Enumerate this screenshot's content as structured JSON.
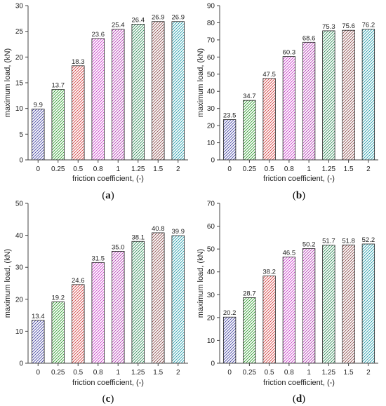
{
  "colors": {
    "bars": [
      "#3f3fa0",
      "#2a9a2a",
      "#d23a3a",
      "#c83ac8",
      "#b43ab4",
      "#2e8b57",
      "#8b4a4a",
      "#1e9aa8"
    ],
    "axis": "#444444"
  },
  "chart_data": [
    {
      "type": "bar",
      "panel": "a",
      "panel_label": "(a)",
      "categories": [
        "0",
        "0.25",
        "0.5",
        "0.8",
        "1",
        "1.25",
        "1.5",
        "2"
      ],
      "values": [
        9.9,
        13.7,
        18.3,
        23.6,
        25.4,
        26.4,
        26.9,
        26.9
      ],
      "value_labels": [
        "9.9",
        "13.7",
        "18.3",
        "23.6",
        "25.4",
        "26.4",
        "26.9",
        "26.9"
      ],
      "xlabel": "friction coefficient, (-)",
      "ylabel": "maximum load, (kN)",
      "ylim": [
        0,
        30
      ],
      "yticks": [
        0,
        5,
        10,
        15,
        20,
        25,
        30
      ],
      "grid": false
    },
    {
      "type": "bar",
      "panel": "b",
      "panel_label": "(b)",
      "categories": [
        "0",
        "0.25",
        "0.5",
        "0.8",
        "1",
        "1.25",
        "1.5",
        "2"
      ],
      "values": [
        23.5,
        34.7,
        47.5,
        60.3,
        68.6,
        75.3,
        75.6,
        76.2
      ],
      "value_labels": [
        "23.5",
        "34.7",
        "47.5",
        "60.3",
        "68.6",
        "75.3",
        "75.6",
        "76.2"
      ],
      "xlabel": "friction coefficient, (-)",
      "ylabel": "maximum load, (kN)",
      "ylim": [
        0,
        90
      ],
      "yticks": [
        0,
        10,
        20,
        30,
        40,
        50,
        60,
        70,
        80,
        90
      ],
      "grid": false
    },
    {
      "type": "bar",
      "panel": "c",
      "panel_label": "(c)",
      "categories": [
        "0",
        "0.25",
        "0.5",
        "0.8",
        "1",
        "1.25",
        "1.5",
        "2"
      ],
      "values": [
        13.4,
        19.2,
        24.6,
        31.5,
        35.0,
        38.1,
        40.8,
        39.9
      ],
      "value_labels": [
        "13.4",
        "19.2",
        "24.6",
        "31.5",
        "35.0",
        "38.1",
        "40.8",
        "39.9"
      ],
      "xlabel": "friction coefficient, (-)",
      "ylabel": "maximum load, (kN)",
      "ylim": [
        0,
        50
      ],
      "yticks": [
        0,
        10,
        20,
        30,
        40,
        50
      ],
      "grid": false
    },
    {
      "type": "bar",
      "panel": "d",
      "panel_label": "(d)",
      "categories": [
        "0",
        "0.25",
        "0.5",
        "0.8",
        "1",
        "1.25",
        "1.5",
        "2"
      ],
      "values": [
        20.2,
        28.7,
        38.2,
        46.5,
        50.2,
        51.7,
        51.8,
        52.2
      ],
      "value_labels": [
        "20.2",
        "28.7",
        "38.2",
        "46.5",
        "50.2",
        "51.7",
        "51.8",
        "52.2"
      ],
      "xlabel": "friction coefficient, (-)",
      "ylabel": "maximum load, (kN)",
      "ylim": [
        0,
        70
      ],
      "yticks": [
        0,
        10,
        20,
        30,
        40,
        50,
        60,
        70
      ],
      "grid": false
    }
  ]
}
